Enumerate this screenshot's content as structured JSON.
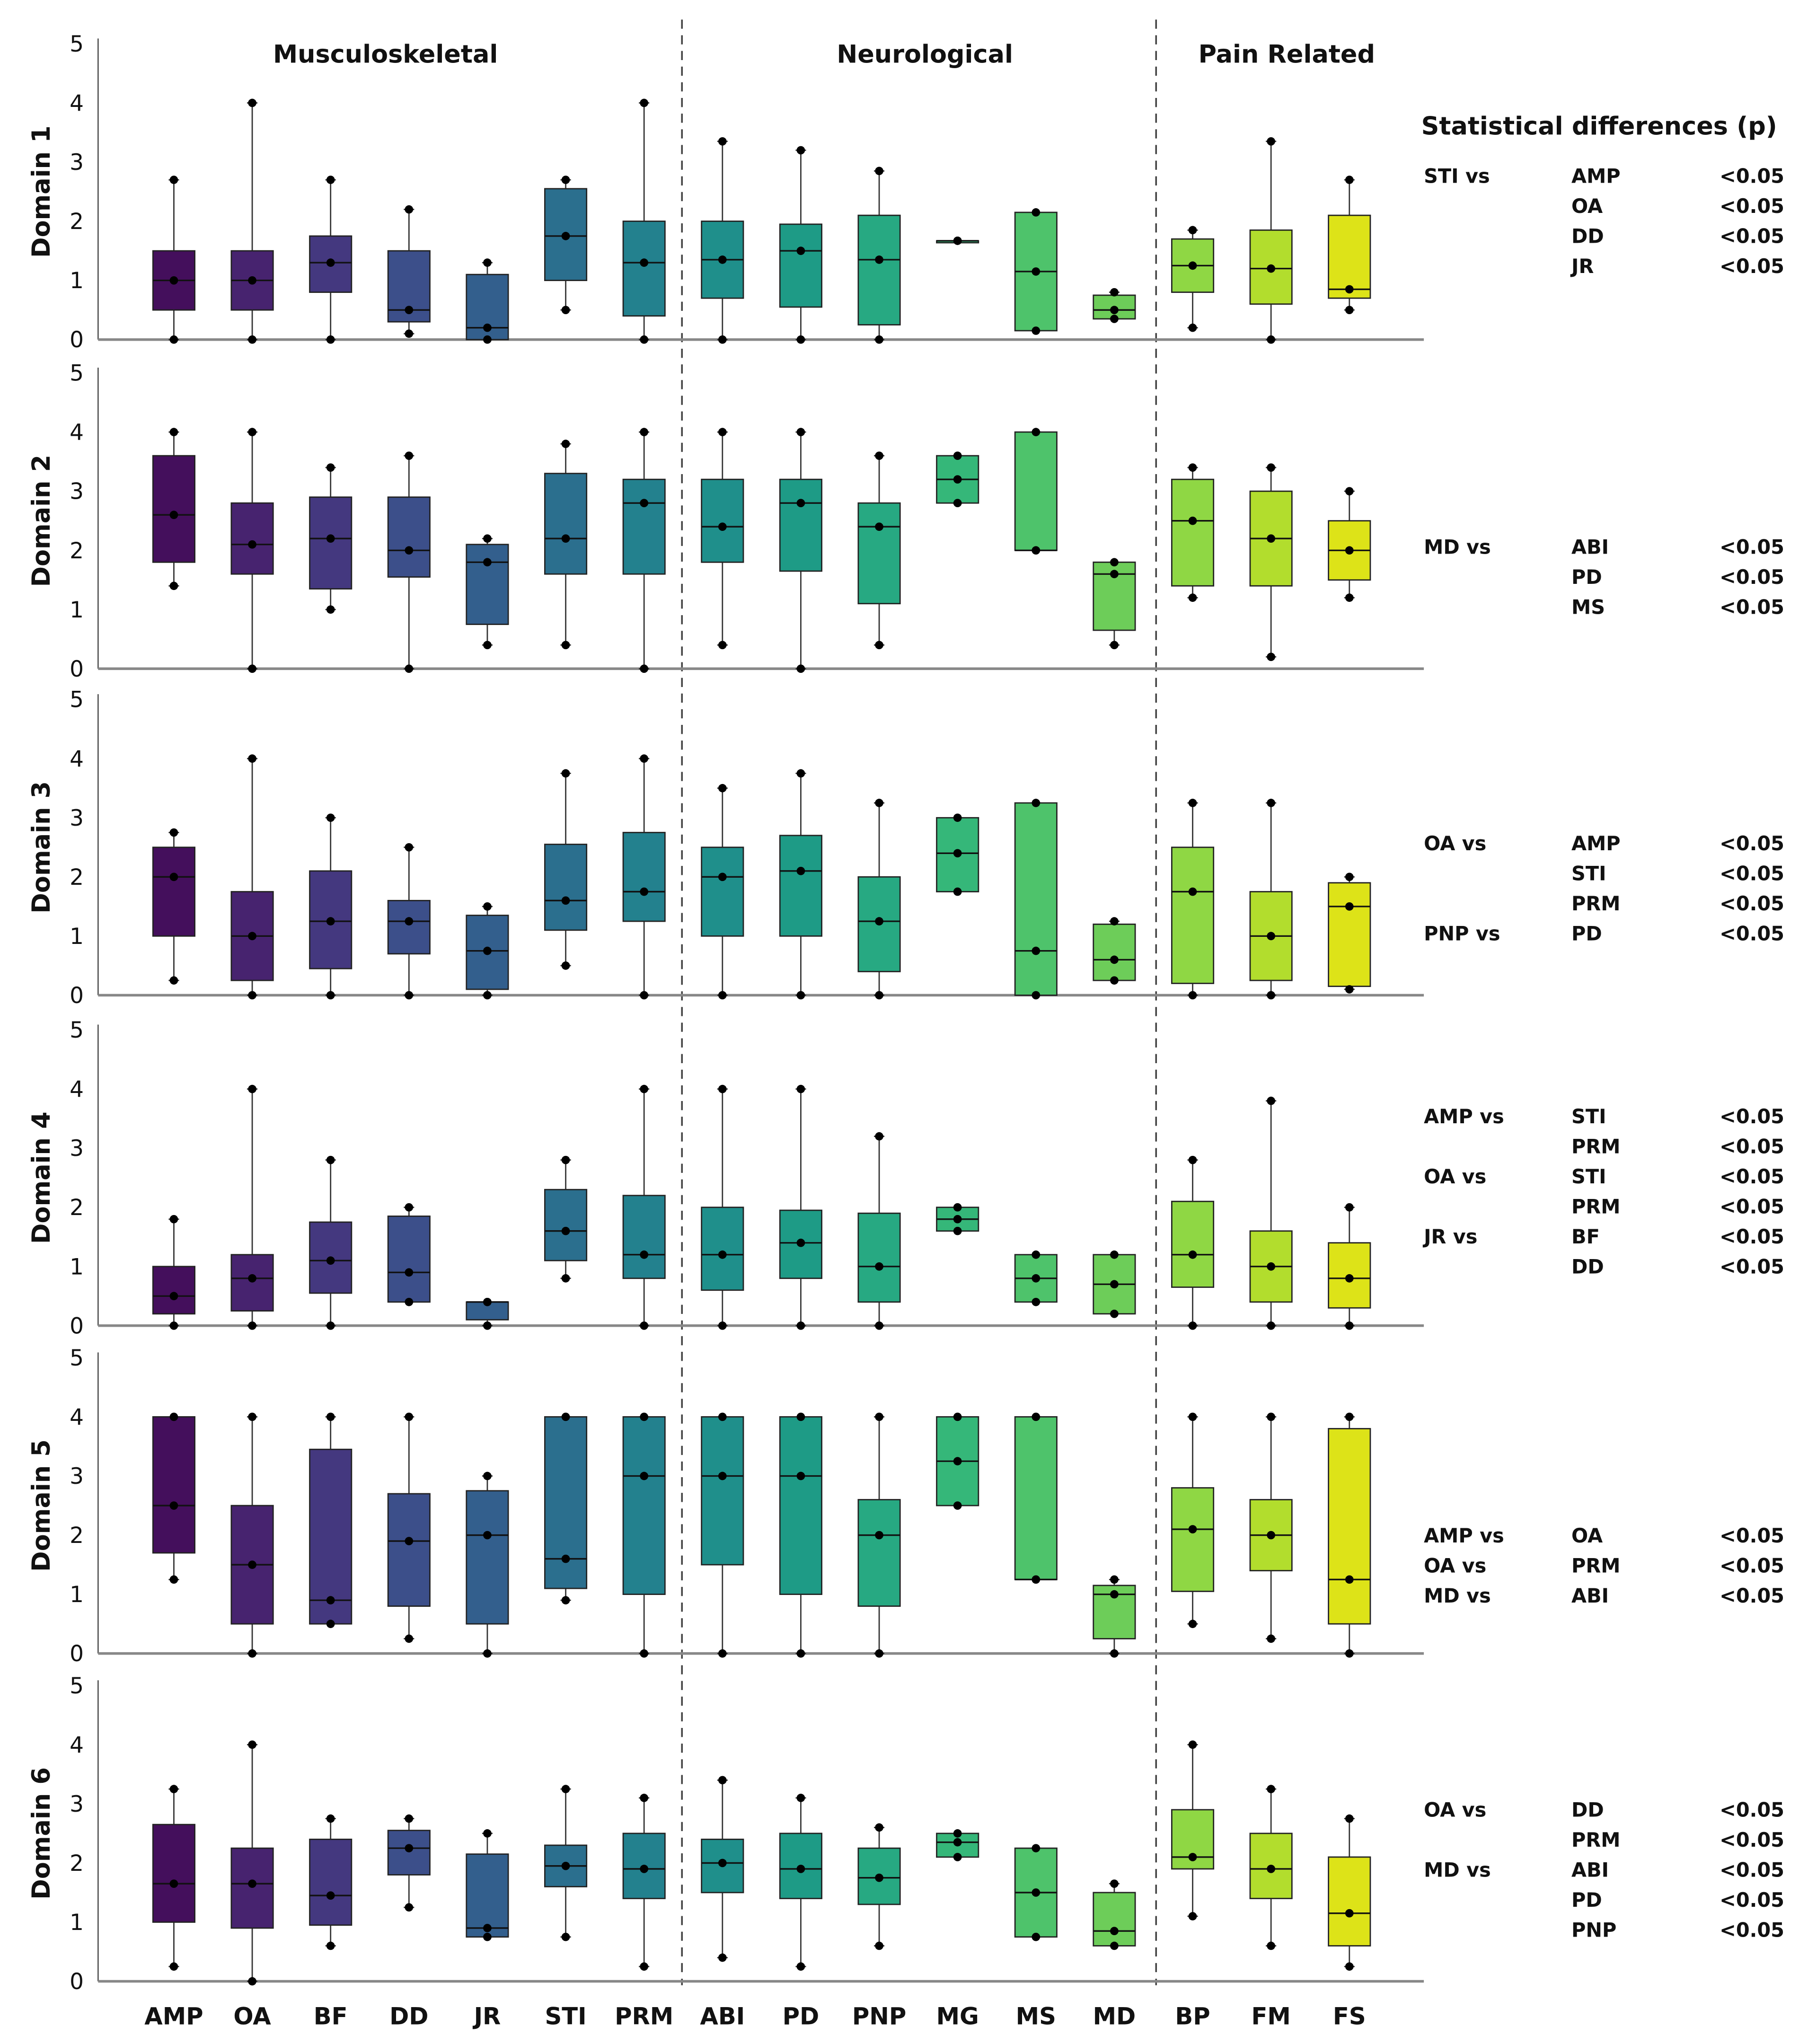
{
  "chart_data": {
    "type": "box",
    "title": "",
    "ylim": [
      0,
      5
    ],
    "yticks": [
      "0",
      "1",
      "2",
      "3",
      "4",
      "5"
    ],
    "categories": [
      "AMP",
      "OA",
      "BF",
      "DD",
      "JR",
      "STI",
      "PRM",
      "ABI",
      "PD",
      "PNP",
      "MG",
      "MS",
      "MD",
      "BP",
      "FM",
      "FS"
    ],
    "colors": [
      "#440f5c",
      "#47236f",
      "#44387f",
      "#3c4f8a",
      "#335f8d",
      "#2b6f8e",
      "#23818e",
      "#1f8f8b",
      "#1e9b86",
      "#27a982",
      "#35b779",
      "#4ec36b",
      "#6dcd59",
      "#8fd744",
      "#b2dd2d",
      "#dde318"
    ],
    "groups": [
      {
        "label": "Musculoskeletal",
        "categories": [
          "AMP",
          "OA",
          "BF",
          "DD",
          "JR",
          "STI",
          "PRM"
        ]
      },
      {
        "label": "Neurological",
        "categories": [
          "ABI",
          "PD",
          "PNP",
          "MG",
          "MS",
          "MD"
        ]
      },
      {
        "label": "Pain Related",
        "categories": [
          "BP",
          "FM",
          "FS"
        ]
      }
    ],
    "box_format": [
      "min",
      "q1",
      "median",
      "q3",
      "max"
    ],
    "series": [
      {
        "name": "Domain 1",
        "boxes": [
          [
            0,
            0.5,
            1.0,
            1.5,
            2.7
          ],
          [
            0,
            0.5,
            1.0,
            1.5,
            4
          ],
          [
            0,
            0.8,
            1.3,
            1.75,
            2.7
          ],
          [
            0.1,
            0.3,
            0.5,
            1.5,
            2.2
          ],
          [
            0,
            0,
            0.2,
            1.1,
            1.3
          ],
          [
            0.5,
            1.0,
            1.75,
            2.55,
            2.7
          ],
          [
            0,
            0.4,
            1.3,
            2.0,
            4
          ],
          [
            0,
            0.7,
            1.35,
            2.0,
            3.35
          ],
          [
            0,
            0.55,
            1.5,
            1.95,
            3.2
          ],
          [
            0,
            0.25,
            1.35,
            2.1,
            2.85
          ],
          [
            1.67,
            1.67,
            1.67,
            1.67,
            1.67
          ],
          [
            0.15,
            0.15,
            1.15,
            2.15,
            2.15
          ],
          [
            0.35,
            0.35,
            0.5,
            0.75,
            0.8
          ],
          [
            0.2,
            0.8,
            1.25,
            1.7,
            1.85
          ],
          [
            0,
            0.6,
            1.2,
            1.85,
            3.35
          ],
          [
            0.5,
            0.7,
            0.85,
            2.1,
            2.7
          ]
        ]
      },
      {
        "name": "Domain 2",
        "boxes": [
          [
            1.4,
            1.8,
            2.6,
            3.6,
            4
          ],
          [
            0,
            1.6,
            2.1,
            2.8,
            4
          ],
          [
            1.0,
            1.35,
            2.2,
            2.9,
            3.4
          ],
          [
            0,
            1.55,
            2.0,
            2.9,
            3.6
          ],
          [
            0.4,
            0.75,
            1.8,
            2.1,
            2.2
          ],
          [
            0.4,
            1.6,
            2.2,
            3.3,
            3.8
          ],
          [
            0,
            1.6,
            2.8,
            3.2,
            4
          ],
          [
            0.4,
            1.8,
            2.4,
            3.2,
            4
          ],
          [
            0,
            1.65,
            2.8,
            3.2,
            4
          ],
          [
            0.4,
            1.1,
            2.4,
            2.8,
            3.6
          ],
          [
            2.8,
            2.8,
            3.2,
            3.6,
            3.6
          ],
          [
            2.0,
            2.0,
            2.0,
            4.0,
            4.0
          ],
          [
            0.4,
            0.65,
            1.6,
            1.8,
            1.8
          ],
          [
            1.2,
            1.4,
            2.5,
            3.2,
            3.4
          ],
          [
            0.2,
            1.4,
            2.2,
            3.0,
            3.4
          ],
          [
            1.2,
            1.5,
            2.0,
            2.5,
            3.0
          ]
        ]
      },
      {
        "name": "Domain 3",
        "boxes": [
          [
            0.25,
            1.0,
            2.0,
            2.5,
            2.75
          ],
          [
            0,
            0.25,
            1.0,
            1.75,
            4
          ],
          [
            0,
            0.45,
            1.25,
            2.1,
            3
          ],
          [
            0,
            0.7,
            1.25,
            1.6,
            2.5
          ],
          [
            0,
            0.1,
            0.75,
            1.35,
            1.5
          ],
          [
            0.5,
            1.1,
            1.6,
            2.55,
            3.75
          ],
          [
            0,
            1.25,
            1.75,
            2.75,
            4
          ],
          [
            0,
            1.0,
            2.0,
            2.5,
            3.5
          ],
          [
            0,
            1.0,
            2.1,
            2.7,
            3.75
          ],
          [
            0,
            0.4,
            1.25,
            2.0,
            3.25
          ],
          [
            1.75,
            1.75,
            2.4,
            3.0,
            3.0
          ],
          [
            0,
            0,
            0.75,
            3.25,
            3.25
          ],
          [
            0.25,
            0.25,
            0.6,
            1.2,
            1.25
          ],
          [
            0,
            0.2,
            1.75,
            2.5,
            3.25
          ],
          [
            0,
            0.25,
            1.0,
            1.75,
            3.25
          ],
          [
            0.1,
            0.15,
            1.5,
            1.9,
            2.0
          ]
        ]
      },
      {
        "name": "Domain 4",
        "boxes": [
          [
            0,
            0.2,
            0.5,
            1.0,
            1.8
          ],
          [
            0,
            0.25,
            0.8,
            1.2,
            4
          ],
          [
            0,
            0.55,
            1.1,
            1.75,
            2.8
          ],
          [
            0.4,
            0.4,
            0.9,
            1.85,
            2.0
          ],
          [
            0,
            0.1,
            0.4,
            0.4,
            0.4
          ],
          [
            0.8,
            1.1,
            1.6,
            2.3,
            2.8
          ],
          [
            0,
            0.8,
            1.2,
            2.2,
            4
          ],
          [
            0,
            0.6,
            1.2,
            2.0,
            4
          ],
          [
            0,
            0.8,
            1.4,
            1.95,
            4
          ],
          [
            0,
            0.4,
            1.0,
            1.9,
            3.2
          ],
          [
            1.6,
            1.6,
            1.8,
            2.0,
            2.0
          ],
          [
            0.4,
            0.4,
            0.8,
            1.2,
            1.2
          ],
          [
            0.2,
            0.2,
            0.7,
            1.2,
            1.2
          ],
          [
            0,
            0.65,
            1.2,
            2.1,
            2.8
          ],
          [
            0,
            0.4,
            1.0,
            1.6,
            3.8
          ],
          [
            0,
            0.3,
            0.8,
            1.4,
            2.0
          ]
        ]
      },
      {
        "name": "Domain 5",
        "boxes": [
          [
            1.25,
            1.7,
            2.5,
            4.0,
            4
          ],
          [
            0,
            0.5,
            1.5,
            2.5,
            4
          ],
          [
            0.5,
            0.5,
            0.9,
            3.45,
            4
          ],
          [
            0.25,
            0.8,
            1.9,
            2.7,
            4
          ],
          [
            0,
            0.5,
            2.0,
            2.75,
            3
          ],
          [
            0.9,
            1.1,
            1.6,
            4.0,
            4
          ],
          [
            0,
            1.0,
            3.0,
            4.0,
            4
          ],
          [
            0,
            1.5,
            3.0,
            4.0,
            4
          ],
          [
            0,
            1.0,
            3.0,
            4.0,
            4
          ],
          [
            0,
            0.8,
            2.0,
            2.6,
            4
          ],
          [
            2.5,
            2.5,
            3.25,
            4,
            4
          ],
          [
            1.25,
            1.25,
            1.25,
            4,
            4
          ],
          [
            0,
            0.25,
            1.0,
            1.15,
            1.25
          ],
          [
            0.5,
            1.05,
            2.1,
            2.8,
            4
          ],
          [
            0.25,
            1.4,
            2.0,
            2.6,
            4
          ],
          [
            0,
            0.5,
            1.25,
            3.8,
            4
          ]
        ]
      },
      {
        "name": "Domain 6",
        "boxes": [
          [
            0.25,
            1.0,
            1.65,
            2.65,
            3.25
          ],
          [
            0,
            0.9,
            1.65,
            2.25,
            4
          ],
          [
            0.6,
            0.95,
            1.45,
            2.4,
            2.75
          ],
          [
            1.25,
            1.8,
            2.25,
            2.55,
            2.75
          ],
          [
            0.75,
            0.75,
            0.9,
            2.15,
            2.5
          ],
          [
            0.75,
            1.6,
            1.95,
            2.3,
            3.25
          ],
          [
            0.25,
            1.4,
            1.9,
            2.5,
            3.1
          ],
          [
            0.4,
            1.5,
            2.0,
            2.4,
            3.4
          ],
          [
            0.25,
            1.4,
            1.9,
            2.5,
            3.1
          ],
          [
            0.6,
            1.3,
            1.75,
            2.25,
            2.6
          ],
          [
            2.1,
            2.1,
            2.35,
            2.5,
            2.5
          ],
          [
            0.75,
            0.75,
            1.5,
            2.25,
            2.25
          ],
          [
            0.6,
            0.6,
            0.85,
            1.5,
            1.65
          ],
          [
            1.1,
            1.9,
            2.1,
            2.9,
            4
          ],
          [
            0.6,
            1.4,
            1.9,
            2.5,
            3.25
          ],
          [
            0.25,
            0.6,
            1.15,
            2.1,
            2.75
          ]
        ]
      }
    ]
  },
  "stats": {
    "title": "Statistical differences (p)",
    "domains": [
      [
        [
          "STI vs",
          "AMP",
          "<0.05"
        ],
        [
          "",
          "OA",
          "<0.05"
        ],
        [
          "",
          "DD",
          "<0.05"
        ],
        [
          "",
          "JR",
          "<0.05"
        ]
      ],
      [
        [
          "MD vs",
          "ABI",
          "<0.05"
        ],
        [
          "",
          "PD",
          "<0.05"
        ],
        [
          "",
          "MS",
          "<0.05"
        ]
      ],
      [
        [
          "OA vs",
          "AMP",
          "<0.05"
        ],
        [
          "",
          "STI",
          "<0.05"
        ],
        [
          "",
          "PRM",
          "<0.05"
        ],
        [
          "PNP vs",
          "PD",
          "<0.05"
        ]
      ],
      [
        [
          "AMP vs",
          "STI",
          "<0.05"
        ],
        [
          "",
          "PRM",
          "<0.05"
        ],
        [
          "OA vs",
          "STI",
          "<0.05"
        ],
        [
          "",
          "PRM",
          "<0.05"
        ],
        [
          "JR vs",
          "BF",
          "<0.05"
        ],
        [
          "",
          "DD",
          "<0.05"
        ]
      ],
      [
        [
          "AMP vs",
          "OA",
          "<0.05"
        ],
        [
          "OA vs",
          "PRM",
          "<0.05"
        ],
        [
          "MD vs",
          "ABI",
          "<0.05"
        ]
      ],
      [
        [
          "OA vs",
          "DD",
          "<0.05"
        ],
        [
          "",
          "PRM",
          "<0.05"
        ],
        [
          "MD vs",
          "ABI",
          "<0.05"
        ],
        [
          "",
          "PD",
          "<0.05"
        ],
        [
          "",
          "PNP",
          "<0.05"
        ]
      ]
    ]
  }
}
